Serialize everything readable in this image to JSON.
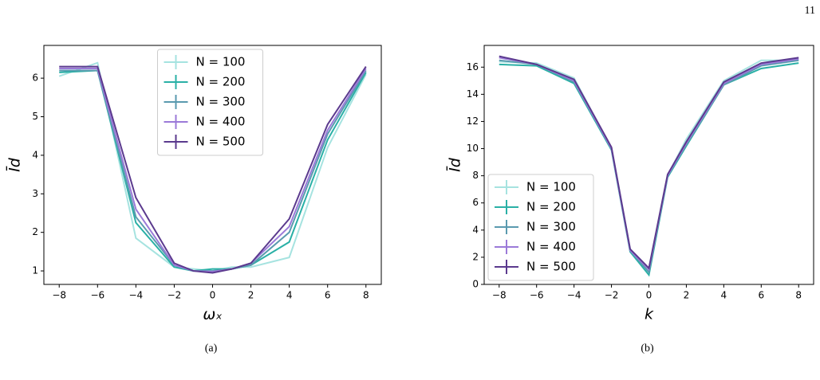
{
  "page_number": "11",
  "chart_data": [
    {
      "type": "line",
      "caption": "(a)",
      "x_label": "ωₓ",
      "y_label": "Īd",
      "x": [
        -8,
        -6,
        -4,
        -2,
        -1,
        0,
        1,
        2,
        4,
        6,
        8
      ],
      "xlim": [
        -8.8,
        8.8
      ],
      "xticks": [
        {
          "value": -8,
          "label": "−8"
        },
        {
          "value": -6,
          "label": "−6"
        },
        {
          "value": -4,
          "label": "−4"
        },
        {
          "value": -2,
          "label": "−2"
        },
        0,
        2,
        4,
        6,
        8
      ],
      "ylim": [
        0.65,
        6.85
      ],
      "yticks": [
        1,
        2,
        3,
        4,
        5,
        6
      ],
      "legend": "upper center",
      "series": [
        {
          "name": "N = 100",
          "color": "#a6e3e0",
          "values": [
            6.05,
            6.4,
            1.85,
            1.1,
            1.05,
            1.0,
            1.1,
            1.1,
            1.35,
            4.2,
            6.1
          ]
        },
        {
          "name": "N = 200",
          "color": "#2ab0a6",
          "values": [
            6.15,
            6.2,
            2.25,
            1.1,
            1.0,
            1.05,
            1.05,
            1.15,
            1.75,
            4.4,
            6.15
          ]
        },
        {
          "name": "N = 300",
          "color": "#5a9aaf",
          "values": [
            6.2,
            6.2,
            2.4,
            1.15,
            1.0,
            1.0,
            1.05,
            1.15,
            2.0,
            4.55,
            6.2
          ]
        },
        {
          "name": "N = 400",
          "color": "#9b7ad8",
          "values": [
            6.25,
            6.25,
            2.6,
            1.15,
            1.0,
            0.98,
            1.05,
            1.2,
            2.15,
            4.65,
            6.25
          ]
        },
        {
          "name": "N = 500",
          "color": "#5b3a8e",
          "values": [
            6.3,
            6.3,
            2.9,
            1.2,
            1.0,
            0.95,
            1.05,
            1.2,
            2.35,
            4.8,
            6.3
          ]
        }
      ]
    },
    {
      "type": "line",
      "caption": "(b)",
      "x_label": "k",
      "y_label": "Īd",
      "x": [
        -8,
        -6,
        -4,
        -2,
        -1,
        0,
        1,
        2,
        4,
        6,
        8
      ],
      "xlim": [
        -8.8,
        8.8
      ],
      "xticks": [
        {
          "value": -8,
          "label": "−8"
        },
        {
          "value": -6,
          "label": "−6"
        },
        {
          "value": -4,
          "label": "−4"
        },
        {
          "value": -2,
          "label": "−2"
        },
        0,
        2,
        4,
        6,
        8
      ],
      "ylim": [
        0,
        17.6
      ],
      "yticks": [
        0,
        2,
        4,
        6,
        8,
        10,
        12,
        14,
        16
      ],
      "legend": "lower left",
      "series": [
        {
          "name": "N = 100",
          "color": "#a6e3e0",
          "values": [
            16.4,
            16.3,
            15.2,
            10.0,
            2.5,
            0.9,
            8.0,
            10.7,
            15.0,
            16.5,
            16.5
          ]
        },
        {
          "name": "N = 200",
          "color": "#2ab0a6",
          "values": [
            16.2,
            16.1,
            14.8,
            9.9,
            2.4,
            0.7,
            7.9,
            10.2,
            14.7,
            15.9,
            16.3
          ]
        },
        {
          "name": "N = 300",
          "color": "#5a9aaf",
          "values": [
            16.5,
            16.2,
            14.9,
            10.0,
            2.5,
            0.9,
            8.0,
            10.3,
            14.7,
            16.1,
            16.5
          ]
        },
        {
          "name": "N = 400",
          "color": "#9b7ad8",
          "values": [
            16.7,
            16.2,
            15.0,
            10.0,
            2.5,
            1.1,
            8.0,
            10.4,
            14.8,
            16.2,
            16.6
          ]
        },
        {
          "name": "N = 500",
          "color": "#5b3a8e",
          "values": [
            16.8,
            16.2,
            15.1,
            10.1,
            2.6,
            1.2,
            8.1,
            10.5,
            14.9,
            16.3,
            16.7
          ]
        }
      ]
    }
  ]
}
